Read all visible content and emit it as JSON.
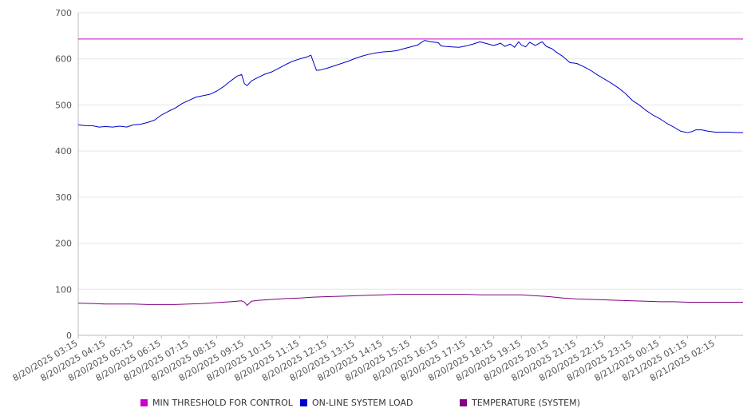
{
  "chart_data": {
    "type": "line",
    "ylim": [
      0,
      700
    ],
    "yticks": [
      "0",
      "100",
      "200",
      "300",
      "400",
      "500",
      "600",
      "700"
    ],
    "grid": true,
    "legend_position": "bottom",
    "categories": [
      "8/20/2025 03:15",
      "8/20/2025 04:15",
      "8/20/2025 05:15",
      "8/20/2025 06:15",
      "8/20/2025 07:15",
      "8/20/2025 08:15",
      "8/20/2025 09:15",
      "8/20/2025 10:15",
      "8/20/2025 11:15",
      "8/20/2025 12:15",
      "8/20/2025 13:15",
      "8/20/2025 14:15",
      "8/20/2025 15:15",
      "8/20/2025 16:15",
      "8/20/2025 17:15",
      "8/20/2025 18:15",
      "8/20/2025 19:15",
      "8/20/2025 20:15",
      "8/20/2025 21:15",
      "8/20/2025 22:15",
      "8/20/2025 23:15",
      "8/21/2025 00:15",
      "8/21/2025 01:15",
      "8/21/2025 02:15"
    ],
    "series": [
      {
        "name": "MIN THRESHOLD FOR CONTROL",
        "color": "#cc00cc",
        "points": [
          [
            0,
            643
          ],
          [
            24,
            643
          ]
        ]
      },
      {
        "name": "ON-LINE SYSTEM LOAD",
        "color": "#0000cc",
        "points": [
          [
            0,
            457
          ],
          [
            0.25,
            455
          ],
          [
            0.5,
            455
          ],
          [
            0.75,
            452
          ],
          [
            1,
            453
          ],
          [
            1.25,
            452
          ],
          [
            1.5,
            454
          ],
          [
            1.75,
            452
          ],
          [
            2,
            457
          ],
          [
            2.25,
            458
          ],
          [
            2.5,
            462
          ],
          [
            2.75,
            467
          ],
          [
            3,
            478
          ],
          [
            3.25,
            486
          ],
          [
            3.5,
            493
          ],
          [
            3.75,
            503
          ],
          [
            4,
            510
          ],
          [
            4.25,
            517
          ],
          [
            4.5,
            520
          ],
          [
            4.75,
            523
          ],
          [
            5,
            530
          ],
          [
            5.25,
            540
          ],
          [
            5.5,
            552
          ],
          [
            5.75,
            563
          ],
          [
            5.9,
            566
          ],
          [
            6,
            546
          ],
          [
            6.1,
            542
          ],
          [
            6.25,
            552
          ],
          [
            6.5,
            560
          ],
          [
            6.75,
            567
          ],
          [
            7,
            572
          ],
          [
            7.25,
            580
          ],
          [
            7.5,
            588
          ],
          [
            7.75,
            595
          ],
          [
            8,
            600
          ],
          [
            8.25,
            604
          ],
          [
            8.4,
            608
          ],
          [
            8.6,
            575
          ],
          [
            8.75,
            576
          ],
          [
            9,
            580
          ],
          [
            9.25,
            585
          ],
          [
            9.5,
            590
          ],
          [
            9.75,
            595
          ],
          [
            10,
            601
          ],
          [
            10.25,
            606
          ],
          [
            10.5,
            610
          ],
          [
            10.75,
            613
          ],
          [
            11,
            615
          ],
          [
            11.25,
            616
          ],
          [
            11.5,
            618
          ],
          [
            11.75,
            622
          ],
          [
            12,
            626
          ],
          [
            12.25,
            630
          ],
          [
            12.5,
            640
          ],
          [
            12.75,
            637
          ],
          [
            13,
            635
          ],
          [
            13.1,
            628
          ],
          [
            13.25,
            627
          ],
          [
            13.5,
            626
          ],
          [
            13.75,
            625
          ],
          [
            14,
            628
          ],
          [
            14.25,
            632
          ],
          [
            14.5,
            637
          ],
          [
            14.75,
            633
          ],
          [
            15,
            629
          ],
          [
            15.25,
            634
          ],
          [
            15.4,
            627
          ],
          [
            15.6,
            632
          ],
          [
            15.75,
            625
          ],
          [
            15.9,
            637
          ],
          [
            16,
            630
          ],
          [
            16.15,
            626
          ],
          [
            16.3,
            636
          ],
          [
            16.5,
            629
          ],
          [
            16.75,
            637
          ],
          [
            16.9,
            627
          ],
          [
            17.1,
            622
          ],
          [
            17.25,
            615
          ],
          [
            17.5,
            605
          ],
          [
            17.75,
            592
          ],
          [
            18,
            590
          ],
          [
            18.25,
            583
          ],
          [
            18.5,
            575
          ],
          [
            18.75,
            565
          ],
          [
            19,
            556
          ],
          [
            19.25,
            547
          ],
          [
            19.5,
            537
          ],
          [
            19.75,
            525
          ],
          [
            20,
            510
          ],
          [
            20.25,
            500
          ],
          [
            20.5,
            488
          ],
          [
            20.75,
            478
          ],
          [
            21,
            470
          ],
          [
            21.25,
            460
          ],
          [
            21.5,
            452
          ],
          [
            21.75,
            443
          ],
          [
            22,
            440
          ],
          [
            22.15,
            442
          ],
          [
            22.3,
            446
          ],
          [
            22.5,
            446
          ],
          [
            22.75,
            443
          ],
          [
            23,
            441
          ],
          [
            23.25,
            441
          ],
          [
            23.5,
            441
          ],
          [
            23.75,
            440
          ],
          [
            24,
            440
          ]
        ]
      },
      {
        "name": "TEMPERATURE (SYSTEM)",
        "color": "#800080",
        "points": [
          [
            0,
            70
          ],
          [
            0.5,
            69
          ],
          [
            1,
            68
          ],
          [
            1.5,
            68
          ],
          [
            2,
            68
          ],
          [
            2.5,
            67
          ],
          [
            3,
            67
          ],
          [
            3.5,
            67
          ],
          [
            4,
            68
          ],
          [
            4.5,
            69
          ],
          [
            5,
            71
          ],
          [
            5.5,
            73
          ],
          [
            5.9,
            75
          ],
          [
            6,
            72
          ],
          [
            6.1,
            65
          ],
          [
            6.25,
            74
          ],
          [
            6.5,
            76
          ],
          [
            7,
            78
          ],
          [
            7.5,
            80
          ],
          [
            8,
            81
          ],
          [
            8.5,
            83
          ],
          [
            9,
            84
          ],
          [
            9.5,
            85
          ],
          [
            10,
            86
          ],
          [
            10.5,
            87
          ],
          [
            11,
            88
          ],
          [
            11.5,
            89
          ],
          [
            12,
            89
          ],
          [
            12.5,
            89
          ],
          [
            13,
            89
          ],
          [
            13.5,
            89
          ],
          [
            14,
            89
          ],
          [
            14.5,
            88
          ],
          [
            15,
            88
          ],
          [
            15.5,
            88
          ],
          [
            16,
            88
          ],
          [
            16.5,
            86
          ],
          [
            17,
            84
          ],
          [
            17.5,
            81
          ],
          [
            18,
            79
          ],
          [
            18.5,
            78
          ],
          [
            19,
            77
          ],
          [
            19.5,
            76
          ],
          [
            20,
            75
          ],
          [
            20.5,
            74
          ],
          [
            21,
            73
          ],
          [
            21.5,
            73
          ],
          [
            22,
            72
          ],
          [
            22.5,
            72
          ],
          [
            23,
            72
          ],
          [
            23.5,
            72
          ],
          [
            24,
            72
          ]
        ]
      }
    ]
  }
}
